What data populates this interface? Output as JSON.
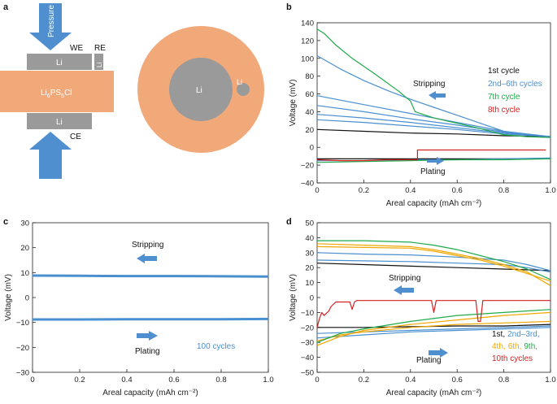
{
  "panels": {
    "a": {
      "label": "a",
      "pressure": "Pressure",
      "we": "WE",
      "re": "RE",
      "ce": "CE",
      "li": "Li",
      "electrolyte": "Li6PS5Cl",
      "electrolyte_main": "Li",
      "electrolyte_sub1": "6",
      "electrolyte_mid": "PS",
      "electrolyte_sub2": "5",
      "electrolyte_end": "Cl",
      "top_view_li": "Li",
      "top_view_re_li": "Li"
    },
    "b": {
      "label": "b"
    },
    "c": {
      "label": "c"
    },
    "d": {
      "label": "d"
    }
  },
  "colors": {
    "electrolyte": "#f2a97a",
    "lithium": "#9a9a9a",
    "arrow": "#4f8fd0",
    "black": "#111111",
    "blue": "#4a8fcf",
    "green": "#1faa4a",
    "red": "#d42020",
    "orange": "#f0a800"
  },
  "chart_data": [
    {
      "panel": "b",
      "type": "line",
      "xlabel": "Areal capacity (mAh cm⁻²)",
      "ylabel": "Voltage (mV)",
      "xlim": [
        0,
        1.0
      ],
      "ylim": [
        -40,
        140
      ],
      "xticks": [
        "0",
        "0.2",
        "0.4",
        "0.6",
        "0.8",
        "1.0"
      ],
      "yticks": [
        "−40",
        "−20",
        "0",
        "20",
        "40",
        "60",
        "80",
        "100",
        "120",
        "140"
      ],
      "annotations": {
        "stripping": "Stripping",
        "plating": "Plating"
      },
      "legend": [
        {
          "text": "1st cycle",
          "color": "#111111"
        },
        {
          "text": "2nd–6th cycles",
          "color": "#4a8fcf"
        },
        {
          "text": "7th cycle",
          "color": "#1faa4a"
        },
        {
          "text": "8th cycle",
          "color": "#d42020"
        }
      ],
      "series": [
        {
          "name": "1st cycle stripping",
          "color": "#111111",
          "x": [
            0,
            0.2,
            0.4,
            0.6,
            0.8,
            1.0
          ],
          "y": [
            20,
            18,
            16,
            15,
            13,
            12
          ]
        },
        {
          "name": "1st cycle plating",
          "color": "#111111",
          "x": [
            0,
            0.2,
            0.4,
            0.6,
            0.8,
            1.0
          ],
          "y": [
            -13,
            -13,
            -13,
            -13,
            -13,
            -13
          ]
        },
        {
          "name": "2nd cycle stripping",
          "color": "#4a8fcf",
          "x": [
            0,
            0.1,
            0.2,
            0.3,
            0.4,
            0.5,
            0.6,
            0.7,
            0.8,
            0.9,
            1.0
          ],
          "y": [
            103,
            88,
            75,
            64,
            54,
            45,
            36,
            27,
            18,
            14,
            12
          ]
        },
        {
          "name": "3rd cycle stripping",
          "color": "#4a8fcf",
          "x": [
            0,
            0.2,
            0.4,
            0.6,
            0.8,
            1.0
          ],
          "y": [
            58,
            48,
            38,
            28,
            18,
            12
          ]
        },
        {
          "name": "4th cycle stripping",
          "color": "#4a8fcf",
          "x": [
            0,
            0.2,
            0.4,
            0.6,
            0.8,
            1.0
          ],
          "y": [
            47,
            40,
            32,
            25,
            17,
            12
          ]
        },
        {
          "name": "5th cycle stripping",
          "color": "#4a8fcf",
          "x": [
            0,
            0.2,
            0.4,
            0.6,
            0.8,
            1.0
          ],
          "y": [
            37,
            33,
            28,
            22,
            16,
            12
          ]
        },
        {
          "name": "6th cycle stripping",
          "color": "#4a8fcf",
          "x": [
            0,
            0.2,
            0.4,
            0.6,
            0.8,
            1.0
          ],
          "y": [
            31,
            28,
            24,
            20,
            15,
            12
          ]
        },
        {
          "name": "2nd–6th cycles plating",
          "color": "#4a8fcf",
          "x": [
            0,
            0.2,
            0.4,
            0.6,
            0.8,
            1.0
          ],
          "y": [
            -15,
            -15,
            -14,
            -14,
            -13,
            -12
          ]
        },
        {
          "name": "7th cycle stripping",
          "color": "#1faa4a",
          "x": [
            0,
            0.03,
            0.08,
            0.15,
            0.25,
            0.35,
            0.4,
            0.42,
            0.5,
            0.6,
            0.7,
            0.8,
            0.9,
            1.0
          ],
          "y": [
            133,
            128,
            115,
            100,
            82,
            63,
            52,
            40,
            33,
            27,
            21,
            14,
            12,
            11
          ]
        },
        {
          "name": "7th cycle plating",
          "color": "#1faa4a",
          "x": [
            0,
            0.2,
            0.4,
            0.6,
            0.8,
            1.0
          ],
          "y": [
            -17,
            -16,
            -15,
            -14,
            -14,
            -13
          ]
        },
        {
          "name": "8th cycle",
          "color": "#d42020",
          "x": [
            0,
            0.1,
            0.2,
            0.3,
            0.43,
            0.43,
            0.6,
            0.8,
            0.98
          ],
          "y": [
            -14,
            -15,
            -15,
            -14,
            -14,
            -3,
            -3,
            -3,
            -3
          ]
        }
      ]
    },
    {
      "panel": "c",
      "type": "line",
      "xlabel": "Areal capacity (mAh cm⁻²)",
      "ylabel": "Voltage (mV)",
      "xlim": [
        0,
        1.0
      ],
      "ylim": [
        -30,
        30
      ],
      "xticks": [
        "0",
        "0.2",
        "0.4",
        "0.6",
        "0.8",
        "1.0"
      ],
      "yticks": [
        "−30",
        "−20",
        "−10",
        "0",
        "10",
        "20",
        "30"
      ],
      "annotations": {
        "stripping": "Stripping",
        "plating": "Plating",
        "cycles": "100 cycles"
      },
      "series": [
        {
          "name": "stripping (100 cycles)",
          "color": "#4a8fcf",
          "x": [
            0,
            0.2,
            0.4,
            0.6,
            0.8,
            1.0
          ],
          "y": [
            8.8,
            8.7,
            8.6,
            8.6,
            8.5,
            8.4
          ]
        },
        {
          "name": "plating (100 cycles)",
          "color": "#4a8fcf",
          "x": [
            0,
            0.2,
            0.4,
            0.6,
            0.8,
            1.0
          ],
          "y": [
            -8.8,
            -8.8,
            -8.7,
            -8.7,
            -8.7,
            -8.6
          ]
        }
      ]
    },
    {
      "panel": "d",
      "type": "line",
      "xlabel": "Areal capacity (mAh cm⁻²)",
      "ylabel": "Voltage (mV)",
      "xlim": [
        0,
        1.0
      ],
      "ylim": [
        -50,
        50
      ],
      "xticks": [
        "0",
        "0.2",
        "0.4",
        "0.6",
        "0.8",
        "1.0"
      ],
      "yticks": [
        "−50",
        "−40",
        "−30",
        "−20",
        "−10",
        "0",
        "10",
        "20",
        "30",
        "40",
        "50"
      ],
      "annotations": {
        "stripping": "Stripping",
        "plating": "Plating"
      },
      "legend": [
        {
          "text": "1st,",
          "color": "#111111",
          "line": 1
        },
        {
          "text": "2nd–3rd,",
          "color": "#4a8fcf",
          "line": 1
        },
        {
          "text": "4th,",
          "color": "#f0a800",
          "line": 2
        },
        {
          "text": "6th,",
          "color": "#f0a800",
          "line": 2
        },
        {
          "text": "9th,",
          "color": "#1faa4a",
          "line": 2
        },
        {
          "text": "10th cycles",
          "color": "#d42020",
          "line": 3
        }
      ],
      "series": [
        {
          "name": "1st stripping",
          "color": "#111111",
          "x": [
            0,
            0.2,
            0.4,
            0.6,
            0.8,
            1.0
          ],
          "y": [
            23,
            22,
            21,
            20,
            19,
            18
          ]
        },
        {
          "name": "1st plating",
          "color": "#111111",
          "x": [
            0,
            0.2,
            0.4,
            0.6,
            0.8,
            1.0
          ],
          "y": [
            -20,
            -20,
            -19.5,
            -19,
            -19,
            -18
          ]
        },
        {
          "name": "2nd stripping",
          "color": "#4a8fcf",
          "x": [
            0,
            0.2,
            0.4,
            0.6,
            0.8,
            0.9,
            1.0
          ],
          "y": [
            30,
            29,
            28.5,
            27,
            25,
            22,
            18
          ]
        },
        {
          "name": "3rd stripping",
          "color": "#4a8fcf",
          "x": [
            0,
            0.2,
            0.4,
            0.6,
            0.8,
            0.9,
            1.0
          ],
          "y": [
            25,
            24.5,
            24,
            23,
            22,
            20,
            17
          ]
        },
        {
          "name": "2nd plating",
          "color": "#4a8fcf",
          "x": [
            0,
            0.2,
            0.4,
            0.6,
            0.8,
            1.0
          ],
          "y": [
            -24,
            -23,
            -22,
            -21,
            -20,
            -19
          ]
        },
        {
          "name": "3rd plating",
          "color": "#4a8fcf",
          "x": [
            0,
            0.2,
            0.4,
            0.6,
            0.8,
            1.0
          ],
          "y": [
            -27,
            -25,
            -23,
            -22,
            -21,
            -20
          ]
        },
        {
          "name": "4th stripping",
          "color": "#f0a800",
          "x": [
            0,
            0.2,
            0.4,
            0.5,
            0.6,
            0.7,
            0.8,
            0.9,
            1.0
          ],
          "y": [
            36,
            35,
            34,
            32,
            29,
            26,
            22,
            17,
            8
          ]
        },
        {
          "name": "6th stripping",
          "color": "#f0a800",
          "x": [
            0,
            0.2,
            0.4,
            0.5,
            0.6,
            0.7,
            0.8,
            0.9,
            1.0
          ],
          "y": [
            34,
            33.5,
            33,
            31,
            28,
            25,
            21,
            16,
            11
          ]
        },
        {
          "name": "4th plating",
          "color": "#f0a800",
          "x": [
            0,
            0.1,
            0.2,
            0.4,
            0.6,
            0.8,
            1.0
          ],
          "y": [
            -32,
            -26,
            -22,
            -18,
            -15,
            -12,
            -10
          ]
        },
        {
          "name": "6th plating",
          "color": "#f0a800",
          "x": [
            0,
            0.1,
            0.2,
            0.4,
            0.6,
            0.8,
            1.0
          ],
          "y": [
            -29,
            -25,
            -23,
            -20,
            -18,
            -17,
            -16
          ]
        },
        {
          "name": "9th stripping",
          "color": "#1faa4a",
          "x": [
            0,
            0.2,
            0.4,
            0.5,
            0.6,
            0.7,
            0.8,
            0.9,
            1.0
          ],
          "y": [
            38,
            38,
            37,
            35,
            32,
            28,
            24,
            19,
            12
          ]
        },
        {
          "name": "9th plating",
          "color": "#1faa4a",
          "x": [
            0,
            0.1,
            0.2,
            0.4,
            0.6,
            0.8,
            1.0
          ],
          "y": [
            -30,
            -24,
            -21,
            -16,
            -12,
            -10,
            -8
          ]
        },
        {
          "name": "10th cycle",
          "color": "#d42020",
          "x": [
            0,
            0.01,
            0.02,
            0.03,
            0.05,
            0.06,
            0.08,
            0.1,
            0.12,
            0.14,
            0.15,
            0.16,
            0.17,
            0.2,
            0.3,
            0.4,
            0.49,
            0.5,
            0.51,
            0.6,
            0.68,
            0.69,
            0.7,
            0.71,
            0.8,
            0.9,
            1.0
          ],
          "y": [
            -20,
            -14,
            -10,
            -12,
            -9,
            -6,
            -3,
            -3,
            -3,
            -3,
            -8,
            -3,
            -2,
            -2,
            -2,
            -2,
            -2,
            -10,
            -2,
            -2,
            -2,
            -16,
            -16,
            -2,
            -2,
            -2,
            -2
          ]
        }
      ]
    }
  ]
}
